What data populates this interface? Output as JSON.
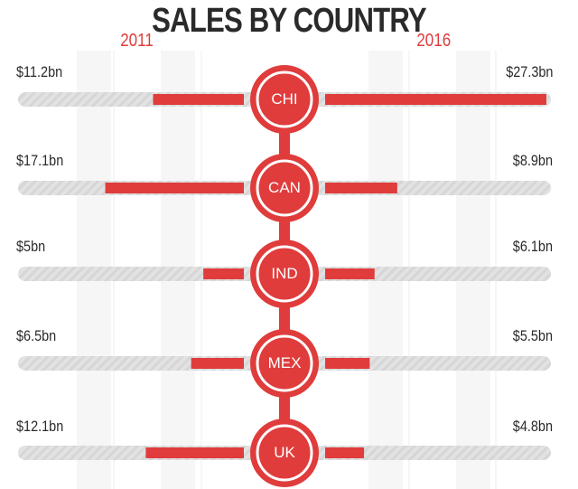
{
  "chart_data": {
    "type": "bar",
    "title": "SALES BY COUNTRY",
    "series_labels": {
      "left": "2011",
      "right": "2016"
    },
    "unit": "bn",
    "categories": [
      "CHI",
      "CAN",
      "IND",
      "MEX",
      "UK"
    ],
    "series": [
      {
        "name": "2011",
        "values": [
          11.2,
          17.1,
          5,
          6.5,
          12.1
        ],
        "labels": [
          "$11.2bn",
          "$17.1bn",
          "$5bn",
          "$6.5bn",
          "$12.1bn"
        ]
      },
      {
        "name": "2016",
        "values": [
          27.3,
          8.9,
          6.1,
          5.5,
          4.8
        ],
        "labels": [
          "$27.3bn",
          "$8.9bn",
          "$6.1bn",
          "$5.5bn",
          "$4.8bn"
        ]
      }
    ],
    "layout": "butterfly bars diverging from central country badges"
  },
  "colors": {
    "accent": "#e03c3c",
    "track": "#e2e2e2",
    "text": "#2a2a2a",
    "grid": "#efefef"
  }
}
